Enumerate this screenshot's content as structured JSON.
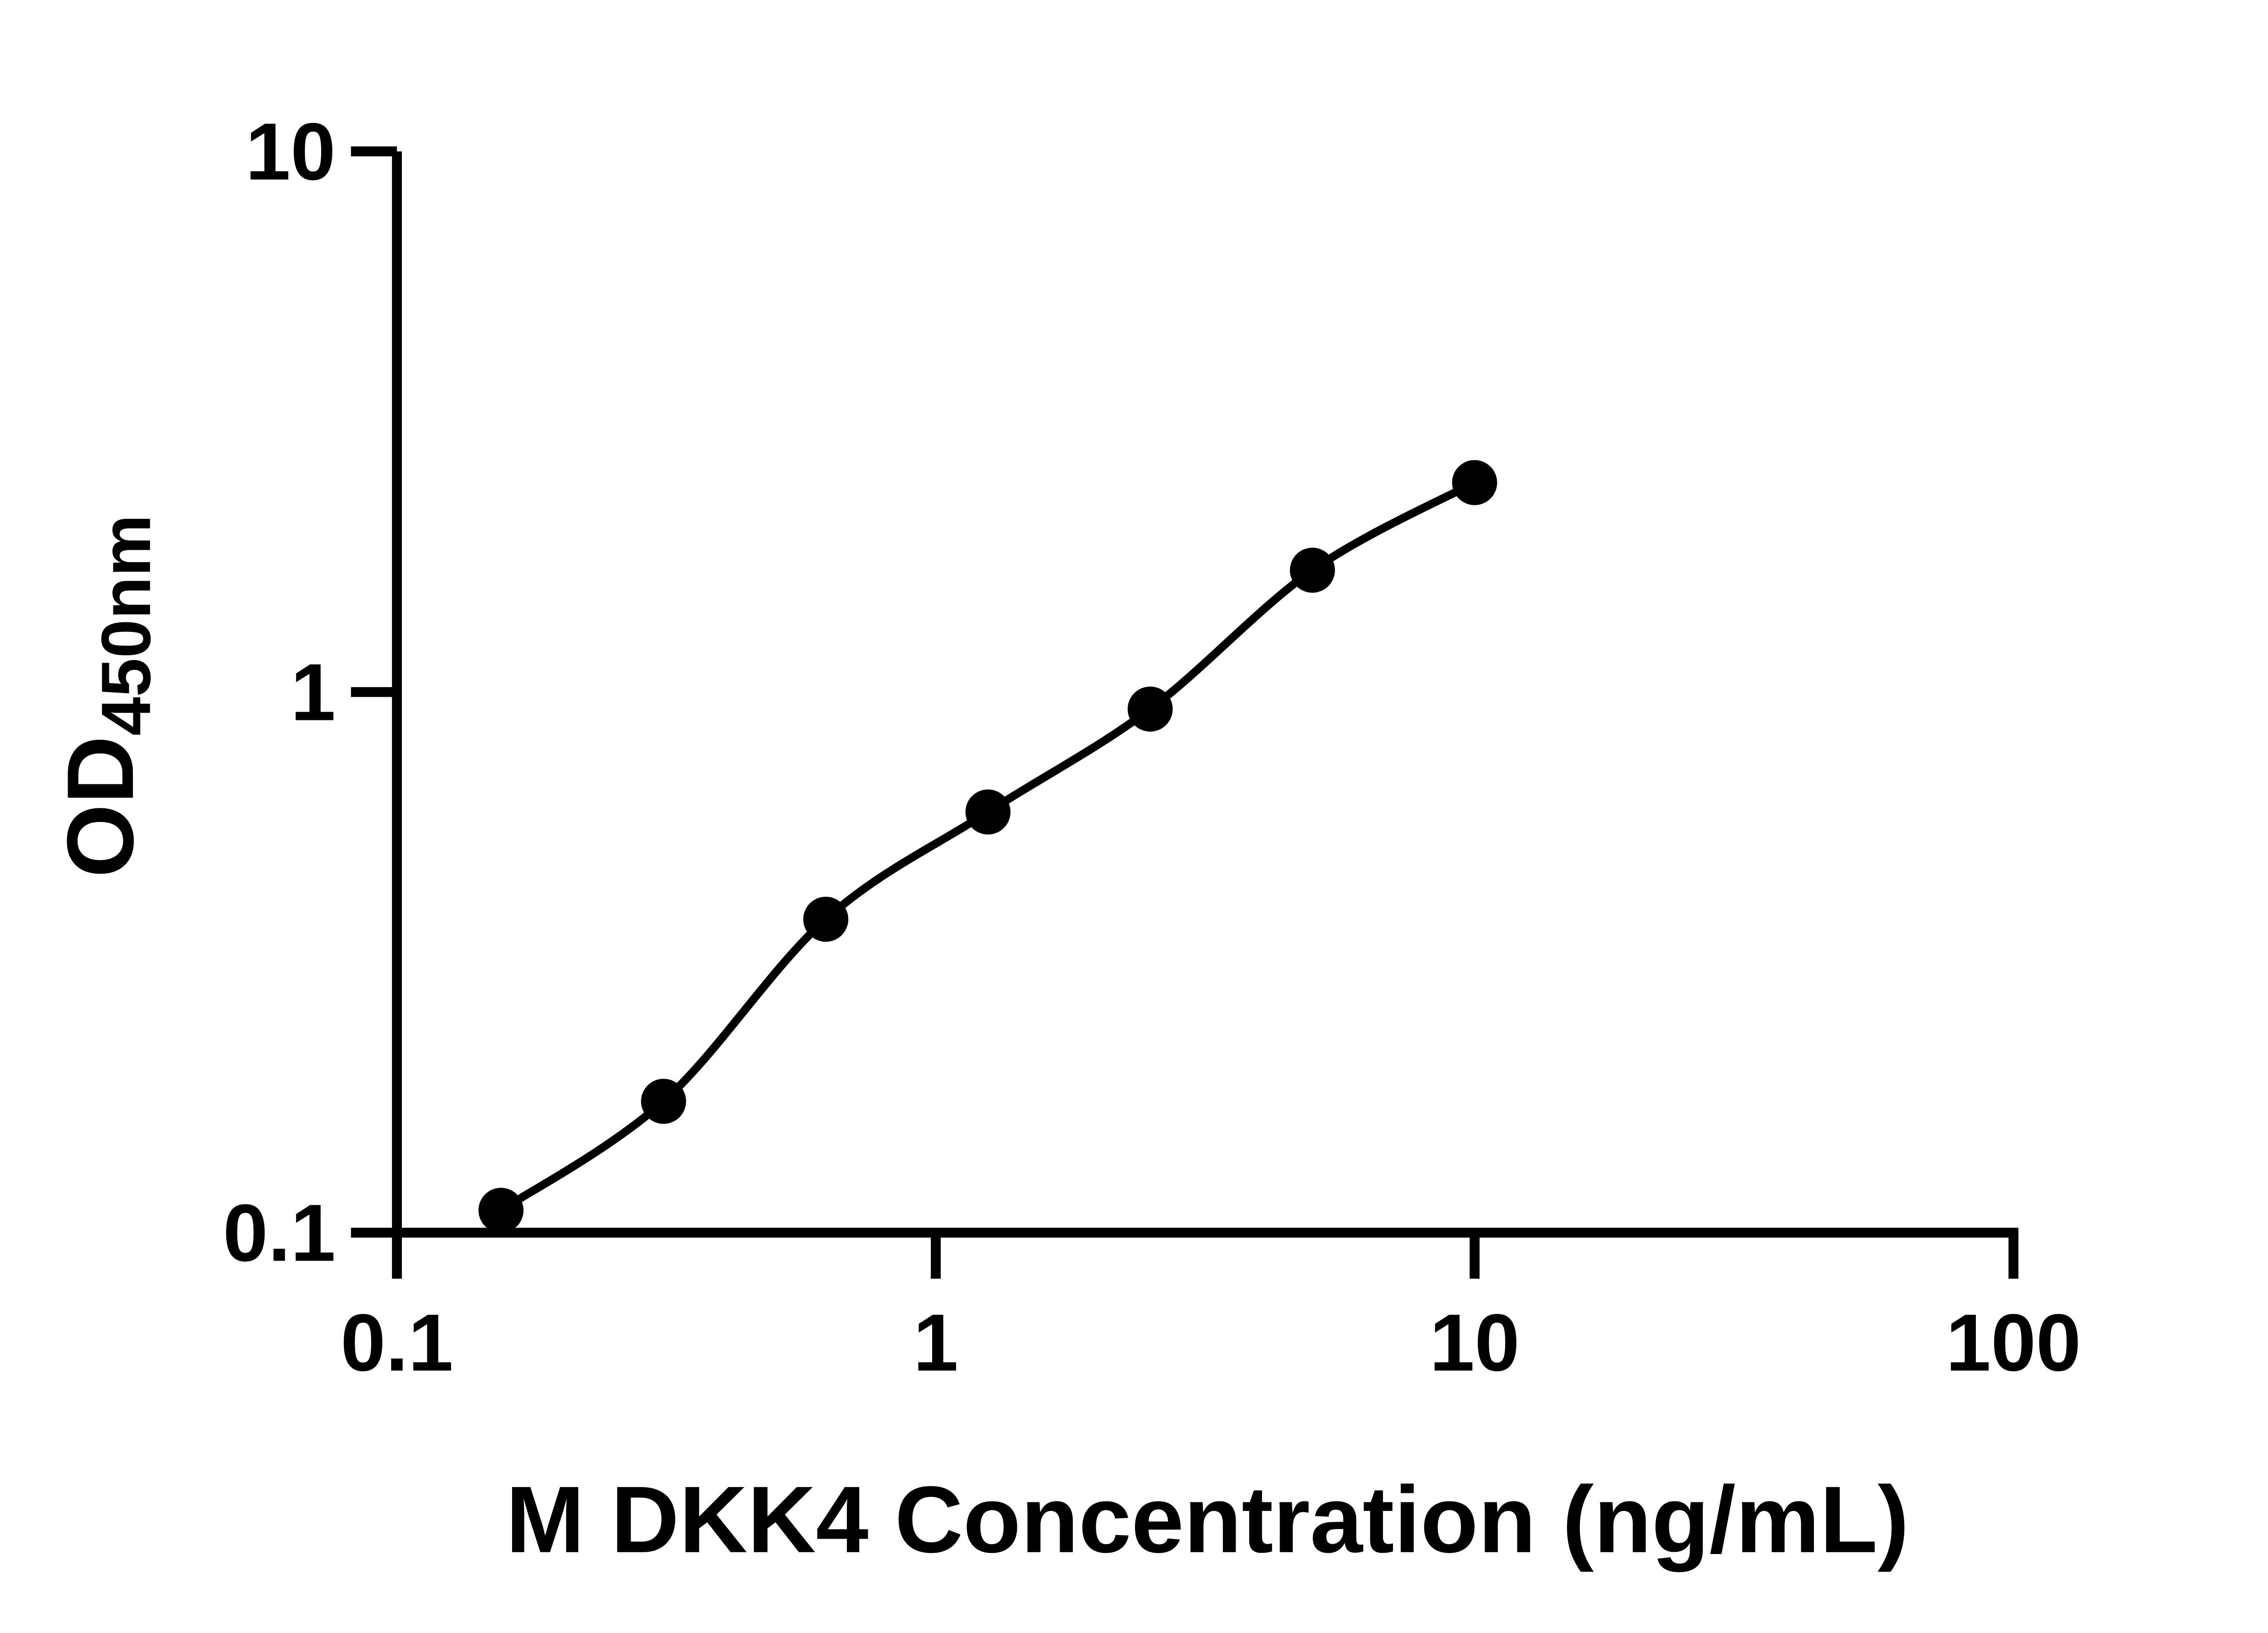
{
  "figure": {
    "background_color": "#FFFFFF",
    "ink_color": "#000000"
  },
  "chart_data": {
    "type": "scatter",
    "title": "",
    "xlabel": "M DKK4 Concentration (ng/mL)",
    "ylabel": {
      "main": "OD",
      "subscript": "450nm"
    },
    "x_scale": "log",
    "y_scale": "log",
    "xlim": [
      0.1,
      100
    ],
    "ylim": [
      0.1,
      10
    ],
    "x_ticks": [
      {
        "v": 0.1,
        "label": "0.1"
      },
      {
        "v": 1,
        "label": "1"
      },
      {
        "v": 10,
        "label": "10"
      },
      {
        "v": 100,
        "label": "100"
      }
    ],
    "y_ticks": [
      {
        "v": 10,
        "label": "10"
      },
      {
        "v": 1,
        "label": "1"
      },
      {
        "v": 0.1,
        "label": "0.1"
      }
    ],
    "grid": false,
    "legend": false,
    "marker": "filled-circle",
    "line": "smooth-fit-through-points",
    "points": [
      {
        "x": 0.156,
        "y": 0.11
      },
      {
        "x": 0.3125,
        "y": 0.175
      },
      {
        "x": 0.625,
        "y": 0.38
      },
      {
        "x": 1.25,
        "y": 0.6
      },
      {
        "x": 2.5,
        "y": 0.93
      },
      {
        "x": 5,
        "y": 1.68
      },
      {
        "x": 10,
        "y": 2.44
      }
    ]
  }
}
